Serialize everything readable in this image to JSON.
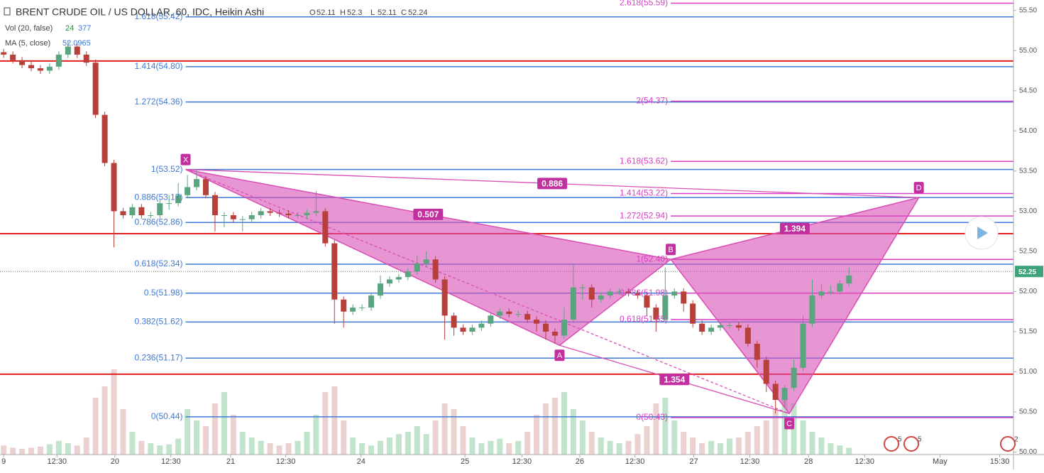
{
  "chart_data": {
    "type": "candlestick",
    "title": "BRENT CRUDE OIL / US DOLLAR, 60, IDC, Heikin Ashi",
    "ohlc_legend": [
      {
        "label": "O",
        "value": 52.11
      },
      {
        "label": "H",
        "value": 52.3
      },
      {
        "label": "L",
        "value": 52.11
      },
      {
        "label": "C",
        "value": 52.24
      }
    ],
    "volume_legend": {
      "label": "Vol (20, false)",
      "values": [
        24,
        377
      ]
    },
    "ma_legend": {
      "label": "MA (5, close)",
      "value": 52.0965
    },
    "xlim": [
      -0.4,
      109.9
    ],
    "xticks": [
      {
        "value": 0,
        "label": "9"
      },
      {
        "value": 5.8,
        "label": "12:30"
      },
      {
        "value": 12.1,
        "label": "20"
      },
      {
        "value": 18.2,
        "label": "12:30"
      },
      {
        "value": 24.7,
        "label": "21"
      },
      {
        "value": 30.7,
        "label": "12:30"
      },
      {
        "value": 38.9,
        "label": "24"
      },
      {
        "value": 50.2,
        "label": "25"
      },
      {
        "value": 56.4,
        "label": "12:30"
      },
      {
        "value": 62.7,
        "label": "26"
      },
      {
        "value": 68.7,
        "label": "12:30"
      },
      {
        "value": 75.1,
        "label": "27"
      },
      {
        "value": 81.2,
        "label": "12:30"
      },
      {
        "value": 87.6,
        "label": "28"
      },
      {
        "value": 93.7,
        "label": "12:30"
      },
      {
        "value": 101.9,
        "label": "May"
      },
      {
        "value": 108.4,
        "label": "15:30"
      }
    ],
    "ylim": [
      49.97,
      55.63
    ],
    "yticks": [
      {
        "value": 50,
        "label": "50.00"
      },
      {
        "value": 50.5,
        "label": "50.50"
      },
      {
        "value": 51,
        "label": "51.00"
      },
      {
        "value": 51.5,
        "label": "51.50"
      },
      {
        "value": 52,
        "label": "52.00"
      },
      {
        "value": 52.5,
        "label": "52.50"
      },
      {
        "value": 53,
        "label": "53.00"
      },
      {
        "value": 53.5,
        "label": "53.50"
      },
      {
        "value": 54,
        "label": "54.00"
      },
      {
        "value": 54.5,
        "label": "54.50"
      },
      {
        "value": 55,
        "label": "55.00"
      },
      {
        "value": 55.5,
        "label": "55.50"
      }
    ],
    "last_price": {
      "value": 52.25,
      "label": "52.25"
    },
    "colors": {
      "up": "#5aa57f",
      "down": "#b7403a",
      "vol_up": "#b9dfc3",
      "vol_down": "#e9c9c9",
      "fib_xa": "#3f7ad6",
      "fib_bc": "#d93fc4",
      "pattern": "#d94fb5",
      "levels": "#e01f1f"
    },
    "candles": [
      [
        54.98,
        55.02,
        54.91,
        54.95
      ],
      [
        54.95,
        54.99,
        54.84,
        54.88
      ],
      [
        54.88,
        54.92,
        54.78,
        54.82
      ],
      [
        54.82,
        54.86,
        54.74,
        54.78
      ],
      [
        54.78,
        54.82,
        54.71,
        54.75
      ],
      [
        54.75,
        54.84,
        54.71,
        54.8
      ],
      [
        54.8,
        54.99,
        54.76,
        54.95
      ],
      [
        54.95,
        55.12,
        54.91,
        55.05
      ],
      [
        55.05,
        55.09,
        54.91,
        54.95
      ],
      [
        54.95,
        54.99,
        54.81,
        54.85
      ],
      [
        54.85,
        54.89,
        54.16,
        54.2
      ],
      [
        54.2,
        54.24,
        53.56,
        53.6
      ],
      [
        53.6,
        53.64,
        52.55,
        53.0
      ],
      [
        53.0,
        53.04,
        52.91,
        52.95
      ],
      [
        52.95,
        53.09,
        52.91,
        53.05
      ],
      [
        53.05,
        53.09,
        52.91,
        52.95
      ],
      [
        52.95,
        52.99,
        52.91,
        52.95
      ],
      [
        52.95,
        53.14,
        52.91,
        53.1
      ],
      [
        53.1,
        53.2,
        53.02,
        53.1
      ],
      [
        53.1,
        53.35,
        53.06,
        53.2
      ],
      [
        53.2,
        53.45,
        53.16,
        53.3
      ],
      [
        53.3,
        53.52,
        53.26,
        53.4
      ],
      [
        53.4,
        53.44,
        53.16,
        53.2
      ],
      [
        53.2,
        53.24,
        52.75,
        52.95
      ],
      [
        52.95,
        52.99,
        52.8,
        52.95
      ],
      [
        52.95,
        52.99,
        52.86,
        52.9
      ],
      [
        52.9,
        52.94,
        52.75,
        52.9
      ],
      [
        52.9,
        52.99,
        52.86,
        52.95
      ],
      [
        52.95,
        53.04,
        52.91,
        53.0
      ],
      [
        53.0,
        53.04,
        52.94,
        52.98
      ],
      [
        52.98,
        53.02,
        52.93,
        52.97
      ],
      [
        52.97,
        53.01,
        52.91,
        52.95
      ],
      [
        52.95,
        52.99,
        52.91,
        52.95
      ],
      [
        52.95,
        53.02,
        52.91,
        52.98
      ],
      [
        52.98,
        53.25,
        52.94,
        53.0
      ],
      [
        53.0,
        53.04,
        52.56,
        52.6
      ],
      [
        52.6,
        52.64,
        51.6,
        51.9
      ],
      [
        51.9,
        51.94,
        51.55,
        51.75
      ],
      [
        51.75,
        51.84,
        51.71,
        51.8
      ],
      [
        51.8,
        51.84,
        51.76,
        51.8
      ],
      [
        51.8,
        51.99,
        51.76,
        51.95
      ],
      [
        51.95,
        52.2,
        51.91,
        52.1
      ],
      [
        52.1,
        52.19,
        52.06,
        52.15
      ],
      [
        52.15,
        52.22,
        52.11,
        52.18
      ],
      [
        52.18,
        52.29,
        52.14,
        52.25
      ],
      [
        52.25,
        52.45,
        52.21,
        52.35
      ],
      [
        52.35,
        52.5,
        52.31,
        52.4
      ],
      [
        52.4,
        52.44,
        52.11,
        52.15
      ],
      [
        52.15,
        52.19,
        51.4,
        51.7
      ],
      [
        51.7,
        51.74,
        51.45,
        51.55
      ],
      [
        51.55,
        51.59,
        51.46,
        51.5
      ],
      [
        51.5,
        51.59,
        51.46,
        51.55
      ],
      [
        51.55,
        51.64,
        51.51,
        51.6
      ],
      [
        51.6,
        51.74,
        51.56,
        51.7
      ],
      [
        51.7,
        51.79,
        51.66,
        51.75
      ],
      [
        51.75,
        51.79,
        51.68,
        51.72
      ],
      [
        51.72,
        51.76,
        51.68,
        51.72
      ],
      [
        51.72,
        51.76,
        51.61,
        51.65
      ],
      [
        51.65,
        51.69,
        51.5,
        51.6
      ],
      [
        51.6,
        51.64,
        51.4,
        51.5
      ],
      [
        51.5,
        51.54,
        51.35,
        51.45
      ],
      [
        51.45,
        51.8,
        51.41,
        51.65
      ],
      [
        51.65,
        52.35,
        51.61,
        52.05
      ],
      [
        52.05,
        52.09,
        51.9,
        52.05
      ],
      [
        52.05,
        52.09,
        51.8,
        51.9
      ],
      [
        51.9,
        51.99,
        51.86,
        51.95
      ],
      [
        51.95,
        52.04,
        51.91,
        52.0
      ],
      [
        52.0,
        52.04,
        51.96,
        52.0
      ],
      [
        52.0,
        52.04,
        51.94,
        51.98
      ],
      [
        51.98,
        52.02,
        51.91,
        51.95
      ],
      [
        51.95,
        51.99,
        51.7,
        51.8
      ],
      [
        51.8,
        51.84,
        51.5,
        51.65
      ],
      [
        51.65,
        52.3,
        51.61,
        51.95
      ],
      [
        51.95,
        52.04,
        51.91,
        52.0
      ],
      [
        52.0,
        52.04,
        51.75,
        51.85
      ],
      [
        51.85,
        51.89,
        51.55,
        51.6
      ],
      [
        51.6,
        51.64,
        51.46,
        51.5
      ],
      [
        51.5,
        51.59,
        51.46,
        51.55
      ],
      [
        51.55,
        51.62,
        51.51,
        51.58
      ],
      [
        51.58,
        51.62,
        51.54,
        51.58
      ],
      [
        51.58,
        51.62,
        51.51,
        51.55
      ],
      [
        51.55,
        51.59,
        51.31,
        51.35
      ],
      [
        51.35,
        51.39,
        51.05,
        51.15
      ],
      [
        51.15,
        51.19,
        50.75,
        50.85
      ],
      [
        50.85,
        50.89,
        50.48,
        50.65
      ],
      [
        50.65,
        50.84,
        50.55,
        50.8
      ],
      [
        50.8,
        51.15,
        50.76,
        51.05
      ],
      [
        51.05,
        51.7,
        51.01,
        51.6
      ],
      [
        51.6,
        52.15,
        51.56,
        51.95
      ],
      [
        51.95,
        52.1,
        51.91,
        52.0
      ],
      [
        52.0,
        52.08,
        51.96,
        52.0
      ],
      [
        52.0,
        52.14,
        51.96,
        52.1
      ],
      [
        52.1,
        52.3,
        52.06,
        52.2
      ]
    ],
    "volume": [
      8000,
      6000,
      5000,
      6000,
      7000,
      9000,
      12000,
      10000,
      8000,
      15000,
      50000,
      60000,
      75000,
      40000,
      20000,
      12000,
      10000,
      8000,
      9000,
      14000,
      40000,
      30000,
      25000,
      45000,
      55000,
      35000,
      20000,
      15000,
      12000,
      10000,
      8000,
      10000,
      12000,
      20000,
      35000,
      55000,
      60000,
      30000,
      15000,
      10000,
      8000,
      12000,
      15000,
      18000,
      20000,
      25000,
      18000,
      30000,
      45000,
      40000,
      25000,
      15000,
      10000,
      12000,
      14000,
      10000,
      12000,
      20000,
      35000,
      45000,
      50000,
      55000,
      40000,
      30000,
      20000,
      15000,
      12000,
      10000,
      12000,
      18000,
      25000,
      45000,
      50000,
      30000,
      20000,
      15000,
      10000,
      12000,
      10000,
      14000,
      15000,
      20000,
      25000,
      30000,
      40000,
      50000,
      45000,
      30000,
      20000,
      15000,
      10000,
      8000,
      6000
    ],
    "volume_ylim": [
      0,
      100000
    ],
    "levels": [
      54.87,
      52.72,
      50.97
    ],
    "fib_xa": [
      {
        "label": "1.618(55.42)",
        "value": 55.42
      },
      {
        "label": "1.414(54.80)",
        "value": 54.8
      },
      {
        "label": "1.272(54.36)",
        "value": 54.36
      },
      {
        "label": "1(53.52)",
        "value": 53.52
      },
      {
        "label": "0.886(53.17)",
        "value": 53.17
      },
      {
        "label": "0.786(52.86)",
        "value": 52.86
      },
      {
        "label": "0.618(52.34)",
        "value": 52.34
      },
      {
        "label": "0.5(51.98)",
        "value": 51.98
      },
      {
        "label": "0.382(51.62)",
        "value": 51.62
      },
      {
        "label": "0.236(51.17)",
        "value": 51.17
      },
      {
        "label": "0(50.44)",
        "value": 50.44
      }
    ],
    "fib_bc": [
      {
        "label": "2.618(55.59)",
        "value": 55.59
      },
      {
        "label": "2(54.37)",
        "value": 54.37
      },
      {
        "label": "1.618(53.62)",
        "value": 53.62
      },
      {
        "label": "1.414(53.22)",
        "value": 53.22
      },
      {
        "label": "1.272(52.94)",
        "value": 52.94
      },
      {
        "label": "1(52.40)",
        "value": 52.4
      },
      {
        "label": "0.786(51.98)",
        "value": 51.98
      },
      {
        "label": "0.618(51.65)",
        "value": 51.65
      },
      {
        "label": "0(50.43)",
        "value": 50.43
      }
    ],
    "pattern_points": [
      {
        "label": "X",
        "x": 19.8,
        "y": 53.52
      },
      {
        "label": "A",
        "x": 60.5,
        "y": 51.33
      },
      {
        "label": "B",
        "x": 72.6,
        "y": 52.4
      },
      {
        "label": "C",
        "x": 85.5,
        "y": 50.48
      },
      {
        "label": "D",
        "x": 99.6,
        "y": 53.17
      }
    ],
    "ratios": [
      0.507,
      0.886,
      1.394,
      1.354
    ],
    "event_badges": [
      "5",
      "5",
      "2"
    ]
  }
}
